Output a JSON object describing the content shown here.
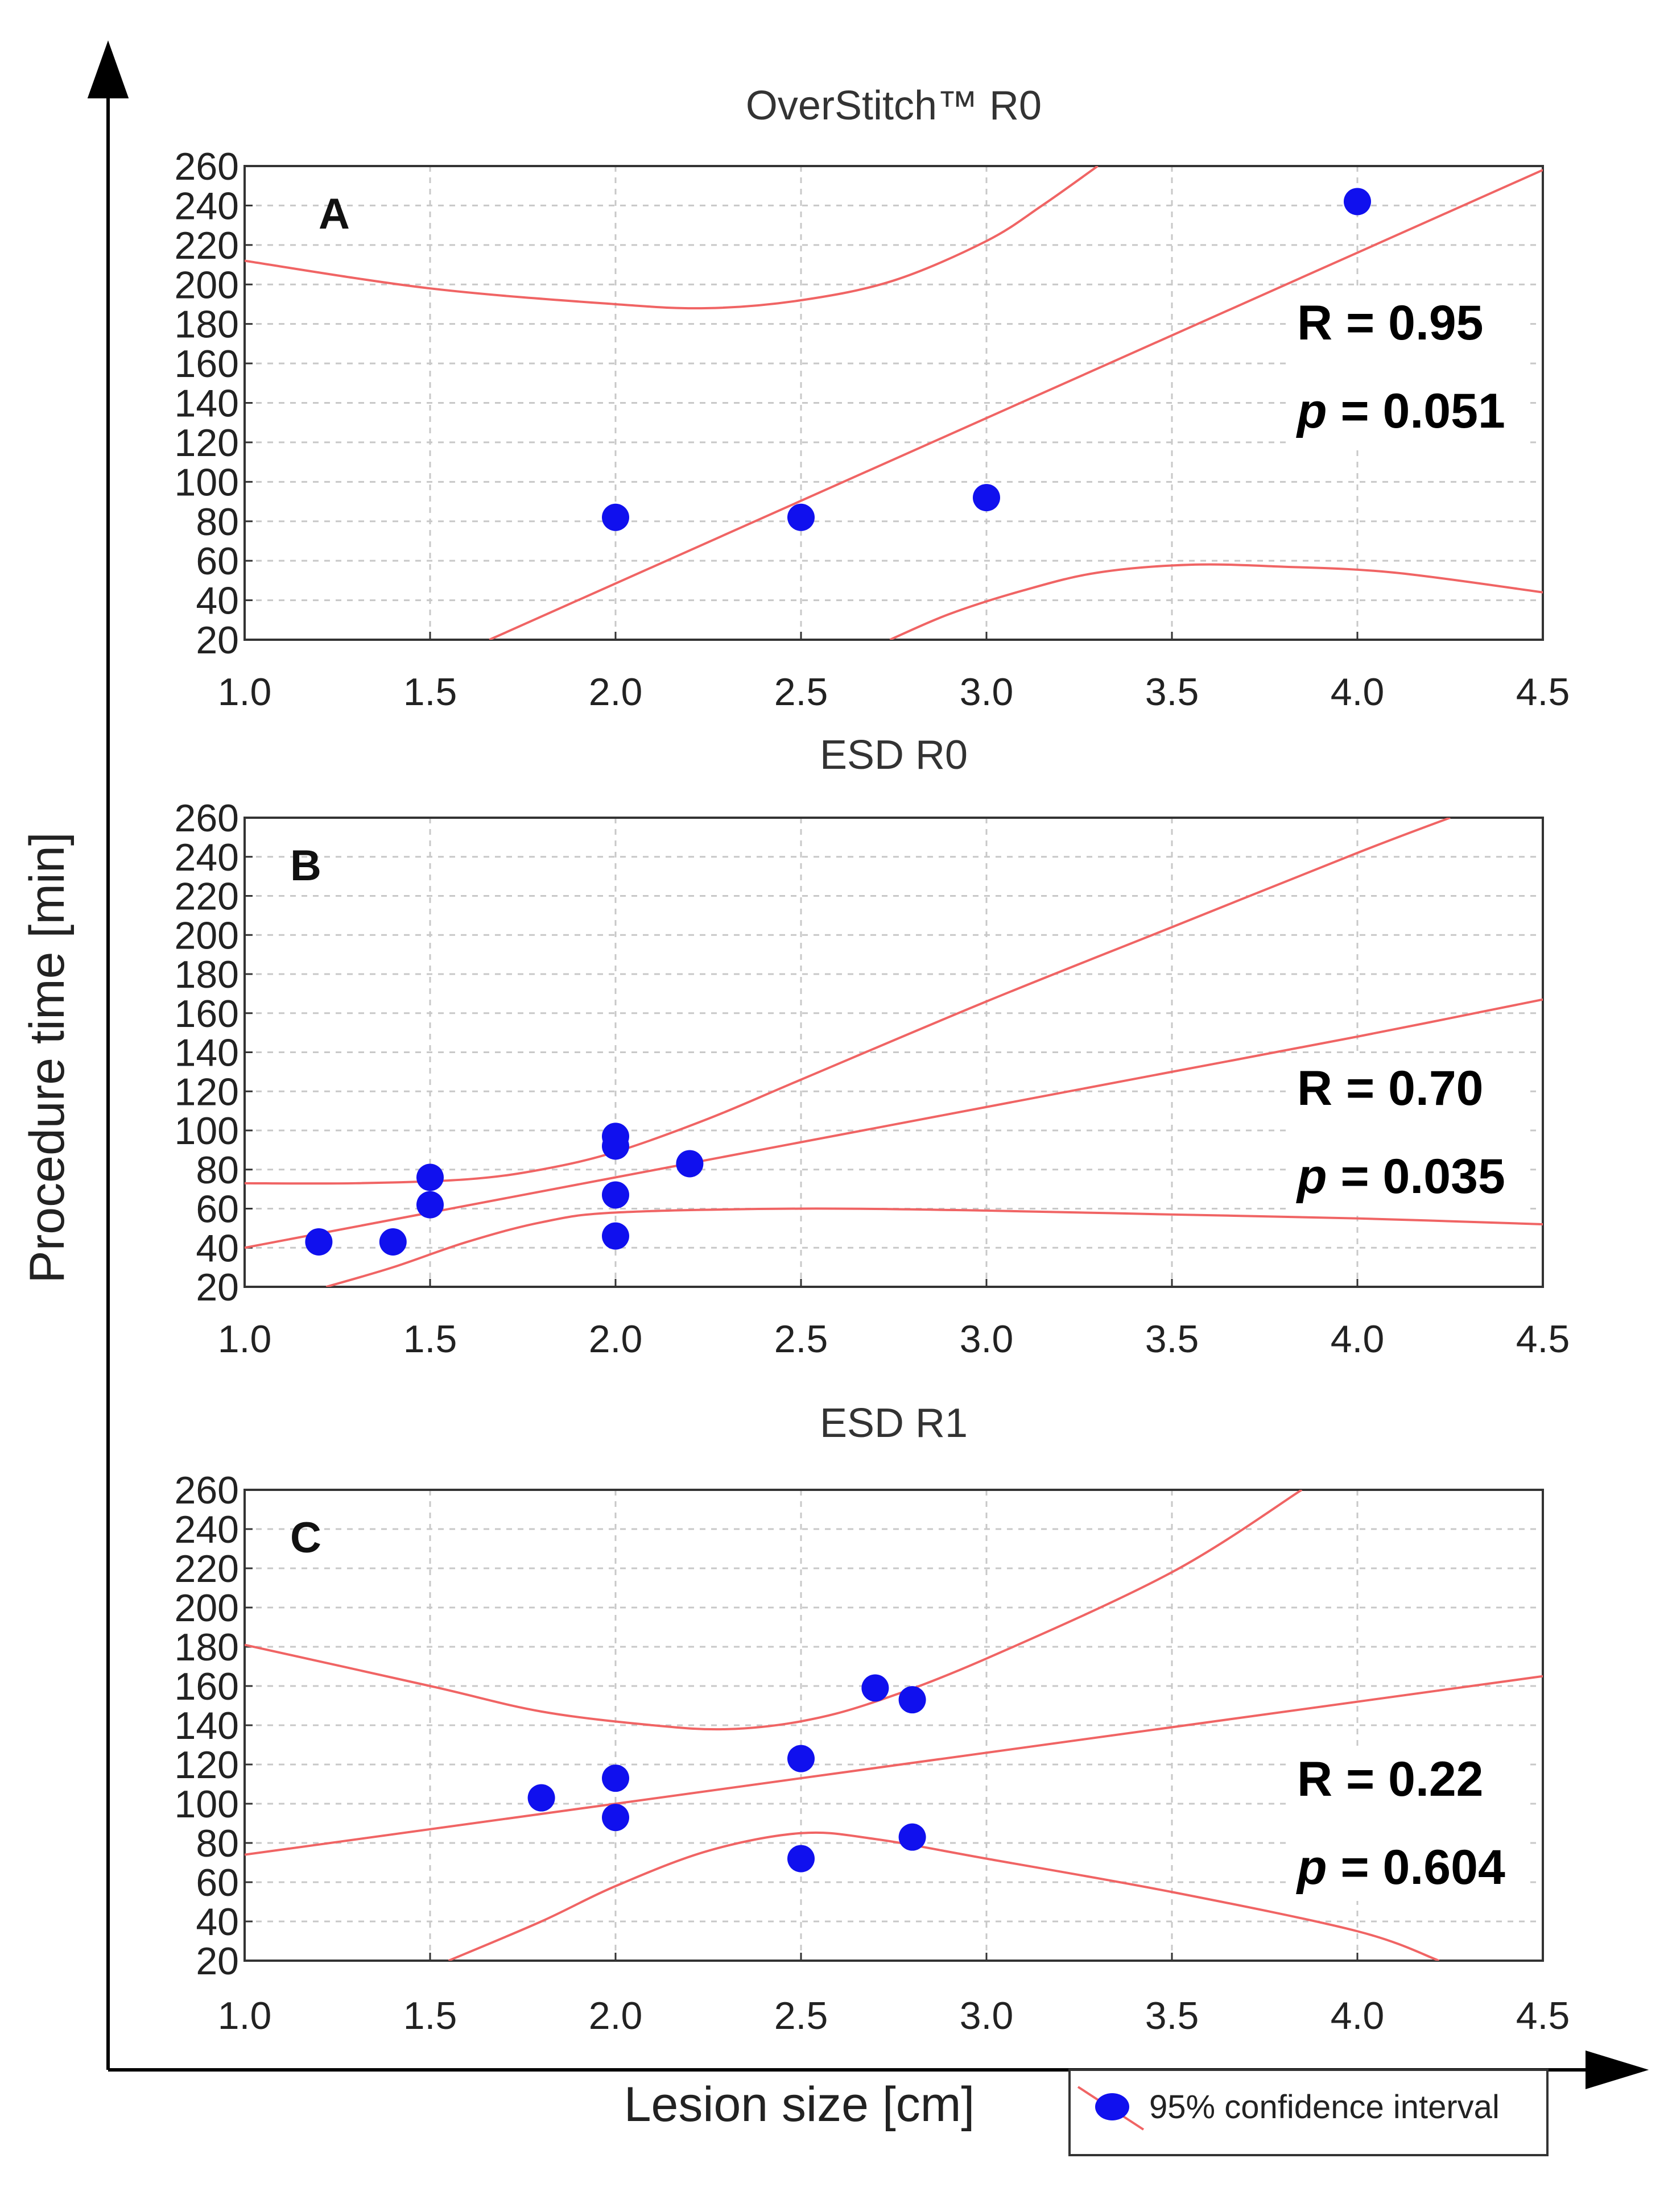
{
  "figure": {
    "ylabel": "Procedure time [min]",
    "xlabel": "Lesion size [cm]",
    "legend": {
      "label": "95% confidence interval",
      "placement": "bottom-right"
    },
    "colors": {
      "points": "#1010ee",
      "lines": "#f06464",
      "grid": "#c8c8c8"
    }
  },
  "chart_data": [
    {
      "type": "scatter",
      "panel": "A",
      "title": "OverStitch™ R0",
      "xlim": [
        1.0,
        4.5
      ],
      "ylim": [
        20,
        260
      ],
      "xticks": [
        "1.0",
        "1.5",
        "2.0",
        "2.5",
        "3.0",
        "3.5",
        "4.0",
        "4.5"
      ],
      "yticks": [
        "20",
        "40",
        "60",
        "80",
        "100",
        "120",
        "140",
        "160",
        "180",
        "200",
        "220",
        "240",
        "260"
      ],
      "grid": true,
      "points": [
        {
          "x": 2.0,
          "y": 82
        },
        {
          "x": 2.5,
          "y": 82
        },
        {
          "x": 3.0,
          "y": 92
        },
        {
          "x": 4.0,
          "y": 242
        }
      ],
      "fit_line": [
        [
          1.66,
          20
        ],
        [
          4.5,
          258
        ]
      ],
      "ci_upper": [
        [
          1.0,
          212
        ],
        [
          1.5,
          198
        ],
        [
          2.0,
          190
        ],
        [
          2.25,
          188
        ],
        [
          2.5,
          192
        ],
        [
          2.75,
          202
        ],
        [
          3.0,
          222
        ],
        [
          3.15,
          240
        ],
        [
          3.3,
          260
        ]
      ],
      "ci_lower": [
        [
          2.74,
          20
        ],
        [
          2.9,
          33
        ],
        [
          3.1,
          45
        ],
        [
          3.3,
          54
        ],
        [
          3.55,
          58
        ],
        [
          3.8,
          57
        ],
        [
          4.1,
          54
        ],
        [
          4.5,
          44
        ]
      ],
      "stats": {
        "r": "R = 0.95",
        "p_label": "p",
        "p_value": " = 0.051"
      }
    },
    {
      "type": "scatter",
      "panel": "B",
      "title": "ESD R0",
      "xlim": [
        1.0,
        4.5
      ],
      "ylim": [
        20,
        260
      ],
      "xticks": [
        "1.0",
        "1.5",
        "2.0",
        "2.5",
        "3.0",
        "3.5",
        "4.0",
        "4.5"
      ],
      "yticks": [
        "20",
        "40",
        "60",
        "80",
        "100",
        "120",
        "140",
        "160",
        "180",
        "200",
        "220",
        "240",
        "260"
      ],
      "grid": true,
      "points": [
        {
          "x": 1.2,
          "y": 43
        },
        {
          "x": 1.4,
          "y": 43
        },
        {
          "x": 1.5,
          "y": 62
        },
        {
          "x": 1.5,
          "y": 76
        },
        {
          "x": 2.0,
          "y": 46
        },
        {
          "x": 2.0,
          "y": 67
        },
        {
          "x": 2.0,
          "y": 92
        },
        {
          "x": 2.0,
          "y": 97
        },
        {
          "x": 2.2,
          "y": 83
        }
      ],
      "fit_line": [
        [
          1.0,
          40
        ],
        [
          1.5,
          58
        ],
        [
          2.0,
          76
        ],
        [
          2.5,
          94
        ],
        [
          3.0,
          112
        ],
        [
          3.5,
          130
        ],
        [
          4.0,
          148
        ],
        [
          4.5,
          167
        ]
      ],
      "ci_upper": [
        [
          1.0,
          73
        ],
        [
          1.3,
          73
        ],
        [
          1.6,
          75
        ],
        [
          1.8,
          80
        ],
        [
          2.0,
          89
        ],
        [
          2.25,
          106
        ],
        [
          2.5,
          126
        ],
        [
          3.0,
          166
        ],
        [
          3.5,
          204
        ],
        [
          4.0,
          242
        ],
        [
          4.25,
          260
        ]
      ],
      "ci_lower": [
        [
          1.22,
          20
        ],
        [
          1.4,
          30
        ],
        [
          1.6,
          43
        ],
        [
          1.8,
          53
        ],
        [
          2.0,
          58
        ],
        [
          2.5,
          60
        ],
        [
          3.0,
          59
        ],
        [
          3.5,
          57
        ],
        [
          4.0,
          55
        ],
        [
          4.5,
          52
        ]
      ],
      "stats": {
        "r": "R = 0.70",
        "p_label": "p",
        "p_value": " = 0.035"
      }
    },
    {
      "type": "scatter",
      "panel": "C",
      "title": "ESD R1",
      "xlim": [
        1.0,
        4.5
      ],
      "ylim": [
        20,
        260
      ],
      "xticks": [
        "1.0",
        "1.5",
        "2.0",
        "2.5",
        "3.0",
        "3.5",
        "4.0",
        "4.5"
      ],
      "yticks": [
        "20",
        "40",
        "60",
        "80",
        "100",
        "120",
        "140",
        "160",
        "180",
        "200",
        "220",
        "240",
        "260"
      ],
      "grid": true,
      "points": [
        {
          "x": 1.8,
          "y": 103
        },
        {
          "x": 2.0,
          "y": 113
        },
        {
          "x": 2.0,
          "y": 93
        },
        {
          "x": 2.5,
          "y": 123
        },
        {
          "x": 2.5,
          "y": 72
        },
        {
          "x": 2.7,
          "y": 159
        },
        {
          "x": 2.8,
          "y": 153
        },
        {
          "x": 2.8,
          "y": 83
        }
      ],
      "fit_line": [
        [
          1.0,
          74
        ],
        [
          4.5,
          165
        ]
      ],
      "ci_upper": [
        [
          1.0,
          181
        ],
        [
          1.5,
          160
        ],
        [
          1.8,
          147
        ],
        [
          2.1,
          140
        ],
        [
          2.3,
          138
        ],
        [
          2.5,
          142
        ],
        [
          2.7,
          152
        ],
        [
          3.0,
          174
        ],
        [
          3.5,
          218
        ],
        [
          3.85,
          260
        ]
      ],
      "ci_lower": [
        [
          1.55,
          20
        ],
        [
          1.8,
          40
        ],
        [
          2.0,
          58
        ],
        [
          2.25,
          76
        ],
        [
          2.5,
          85
        ],
        [
          2.7,
          82
        ],
        [
          3.0,
          72
        ],
        [
          3.5,
          55
        ],
        [
          4.0,
          35
        ],
        [
          4.22,
          20
        ]
      ],
      "stats": {
        "r": "R = 0.22",
        "p_label": "p",
        "p_value": " = 0.604"
      }
    }
  ]
}
